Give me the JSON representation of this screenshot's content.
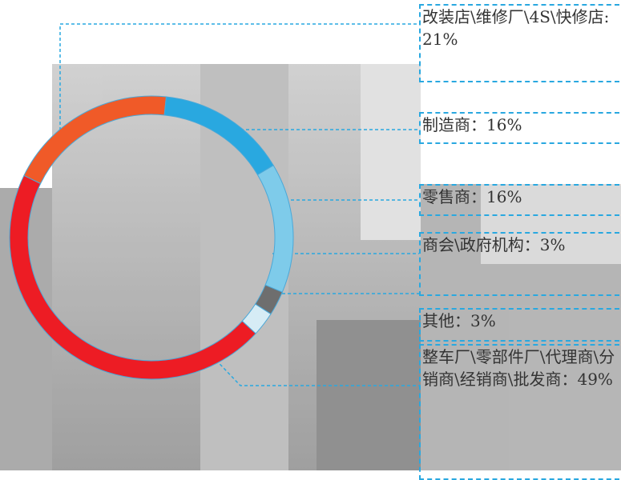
{
  "chart_data": {
    "type": "donut",
    "values": [
      21,
      16,
      16,
      3,
      3,
      49
    ],
    "value_labels": [
      "改装店\\维修厂\\4S\\快修店:21%",
      "制造商：16%",
      "零售商：16%",
      "商会\\政府机构：3%",
      "其他：3%",
      "整车厂\\零部件厂\\代理商\\分销商\\经销商\\批发商：49%"
    ],
    "colors": [
      "#f05a28",
      "#29a8e0",
      "#7ecbea",
      "#6e6e6e",
      "#d6ecf5",
      "#ed1c24"
    ]
  }
}
